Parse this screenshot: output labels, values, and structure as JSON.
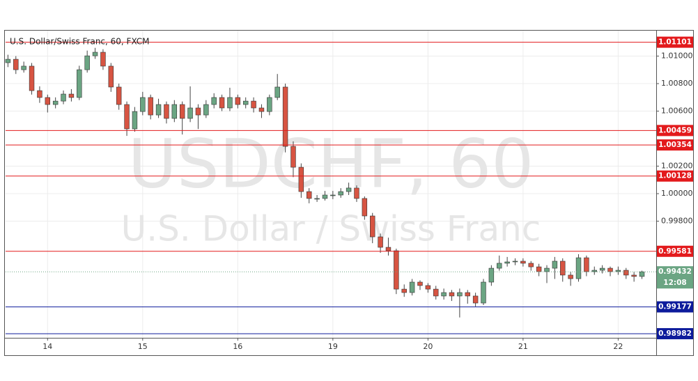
{
  "chart_data": {
    "type": "candlestick",
    "title": "U.S. Dollar/Swiss Franc, 60, FXCM",
    "watermark_symbol": "USDCHF, 60",
    "watermark_description": "U.S. Dollar / Swiss Franc",
    "x": [
      0,
      1,
      2,
      3,
      4,
      5,
      6,
      7,
      8,
      9,
      10,
      11,
      12,
      13,
      14,
      15,
      16,
      17,
      18,
      19,
      20,
      21,
      22,
      23,
      24,
      25,
      26,
      27,
      28,
      29,
      30,
      31,
      32,
      33,
      34,
      35,
      36,
      37,
      38,
      39,
      40,
      41,
      42,
      43,
      44,
      45,
      46,
      47,
      48,
      49,
      50,
      51,
      52,
      53,
      54,
      55,
      56,
      57,
      58,
      59,
      60,
      61,
      62,
      63,
      64,
      65,
      66,
      67,
      68,
      69,
      70,
      71,
      72,
      73,
      74,
      75,
      76,
      77,
      78,
      79,
      80
    ],
    "open": [
      1.00952,
      1.00977,
      1.00901,
      1.00927,
      1.00749,
      1.00699,
      1.00648,
      1.00673,
      1.00724,
      1.00699,
      1.00901,
      1.01002,
      1.01028,
      1.00927,
      1.00775,
      1.00648,
      1.00471,
      1.00597,
      1.00699,
      1.00572,
      1.00648,
      1.00547,
      1.00648,
      1.00547,
      1.00623,
      1.00572,
      1.00648,
      1.00699,
      1.00623,
      1.00699,
      1.00648,
      1.00673,
      1.00623,
      1.00597,
      1.00699,
      1.00775,
      1.00344,
      1.00192,
      1.00015,
      0.99965,
      0.99965,
      0.9999,
      0.9999,
      1.00015,
      1.00041,
      0.99965,
      0.99838,
      0.99686,
      0.9961,
      0.99585,
      0.99306,
      0.99281,
      0.99357,
      0.99332,
      0.99306,
      0.99256,
      0.99281,
      0.99256,
      0.99281,
      0.99256,
      0.99205,
      0.99357,
      0.99458,
      0.99494,
      0.99504,
      0.99509,
      0.99494,
      0.99468,
      0.99433,
      0.99458,
      0.99509,
      0.99408,
      0.99382,
      0.99534,
      0.99433,
      0.99443,
      0.99458,
      0.99433,
      0.99443,
      0.99408,
      0.99398
    ],
    "high": [
      1.0101,
      1.01,
      1.0096,
      1.0095,
      1.0078,
      1.0072,
      1.007,
      1.0075,
      1.0076,
      1.0093,
      1.0104,
      1.0106,
      1.0105,
      1.0095,
      1.008,
      1.0067,
      1.0063,
      1.0074,
      1.0072,
      1.0069,
      1.0067,
      1.0068,
      1.0067,
      1.0078,
      1.0065,
      1.0068,
      1.0073,
      1.0072,
      1.0077,
      1.0072,
      1.007,
      1.007,
      1.0065,
      1.0072,
      1.0087,
      1.008,
      1.0038,
      1.0022,
      1.0004,
      0.9999,
      1.0002,
      1.0002,
      1.0004,
      1.0008,
      1.0006,
      0.9998,
      0.9986,
      0.9971,
      0.9968,
      0.996,
      0.9934,
      0.9938,
      0.9937,
      0.9935,
      0.9933,
      0.9931,
      0.993,
      0.9931,
      0.993,
      0.9928,
      0.9938,
      0.9948,
      0.9955,
      0.9954,
      0.9953,
      0.9953,
      0.9951,
      0.9949,
      0.9948,
      0.9954,
      0.9953,
      0.9943,
      0.9956,
      0.9955,
      0.9947,
      0.9948,
      0.9947,
      0.9947,
      0.9946,
      0.9943,
      0.9944
    ],
    "low": [
      1.0092,
      1.0087,
      1.0088,
      1.0072,
      1.0066,
      1.0059,
      1.0062,
      1.0065,
      1.0067,
      1.0068,
      1.0088,
      1.0098,
      1.009,
      1.0074,
      1.0061,
      1.0042,
      1.0045,
      1.0057,
      1.0054,
      1.0055,
      1.0051,
      1.0052,
      1.0043,
      1.0052,
      1.0047,
      1.0055,
      1.0062,
      1.006,
      1.006,
      1.0062,
      1.0062,
      1.0059,
      1.0055,
      1.0057,
      1.0068,
      1.003,
      1.0012,
      0.9997,
      0.9993,
      0.9994,
      0.9995,
      0.9996,
      0.9997,
      0.9999,
      0.9994,
      0.9981,
      0.9964,
      0.9957,
      0.9955,
      0.9927,
      0.9925,
      0.9926,
      0.993,
      0.9928,
      0.9923,
      0.9923,
      0.9922,
      0.991,
      0.992,
      0.9918,
      0.9919,
      0.9933,
      0.9944,
      0.9947,
      0.9948,
      0.9947,
      0.9944,
      0.994,
      0.9935,
      0.9938,
      0.9936,
      0.9933,
      0.9936,
      0.994,
      0.9941,
      0.9942,
      0.994,
      0.9941,
      0.9938,
      0.9936,
      0.9938
    ],
    "close": [
      1.00977,
      1.00901,
      1.00927,
      1.00749,
      1.00699,
      1.00648,
      1.00673,
      1.00724,
      1.00699,
      1.00901,
      1.01002,
      1.01028,
      1.00927,
      1.00775,
      1.00648,
      1.00471,
      1.00597,
      1.00699,
      1.00572,
      1.00648,
      1.00547,
      1.00648,
      1.00547,
      1.00623,
      1.00572,
      1.00648,
      1.00699,
      1.00623,
      1.00699,
      1.00648,
      1.00673,
      1.00623,
      1.00597,
      1.00699,
      1.00775,
      1.00344,
      1.00192,
      1.00015,
      0.99965,
      0.99965,
      0.9999,
      0.9999,
      1.00015,
      1.00041,
      0.99965,
      0.99838,
      0.99686,
      0.9961,
      0.99585,
      0.99306,
      0.99281,
      0.99357,
      0.99332,
      0.99306,
      0.99256,
      0.99281,
      0.99256,
      0.99281,
      0.99256,
      0.99205,
      0.99357,
      0.99458,
      0.99494,
      0.99504,
      0.99509,
      0.99494,
      0.99468,
      0.99433,
      0.99458,
      0.99509,
      0.99408,
      0.99382,
      0.99534,
      0.99433,
      0.99443,
      0.99458,
      0.99433,
      0.99443,
      0.99408,
      0.99398,
      0.99432
    ],
    "up_color": "#6ba583",
    "down_color": "#d75442",
    "xlim": [
      -0.3,
      81.8
    ],
    "xticks": [
      {
        "value": 5,
        "label": "14"
      },
      {
        "value": 17,
        "label": "15"
      },
      {
        "value": 29,
        "label": "16"
      },
      {
        "value": 41,
        "label": "19"
      },
      {
        "value": 53,
        "label": "20"
      },
      {
        "value": 65,
        "label": "21"
      },
      {
        "value": 77,
        "label": "22"
      }
    ],
    "ylim": [
      0.98952,
      1.01185
    ],
    "yticks": [
      {
        "value": 1.01,
        "label": "1.01000"
      },
      {
        "value": 1.008,
        "label": "1.00800"
      },
      {
        "value": 1.006,
        "label": "1.00600"
      },
      {
        "value": 1.002,
        "label": "1.00200"
      },
      {
        "value": 1,
        "label": "1.00000"
      },
      {
        "value": 0.998,
        "label": "0.99800"
      }
    ],
    "grid": true,
    "levels": [
      {
        "value": 1.01101,
        "color": "#e31a1c"
      },
      {
        "value": 1.00459,
        "color": "#e31a1c"
      },
      {
        "value": 1.00354,
        "color": "#e31a1c"
      },
      {
        "value": 1.00128,
        "color": "#e31a1c"
      },
      {
        "value": 0.99581,
        "color": "#e31a1c"
      },
      {
        "value": 0.99177,
        "color": "#0d1b9c"
      },
      {
        "value": 0.98982,
        "color": "#0d1b9c"
      }
    ],
    "last_price": 0.99432,
    "last_price_color": "#6ba583",
    "countdown": "12:08"
  }
}
